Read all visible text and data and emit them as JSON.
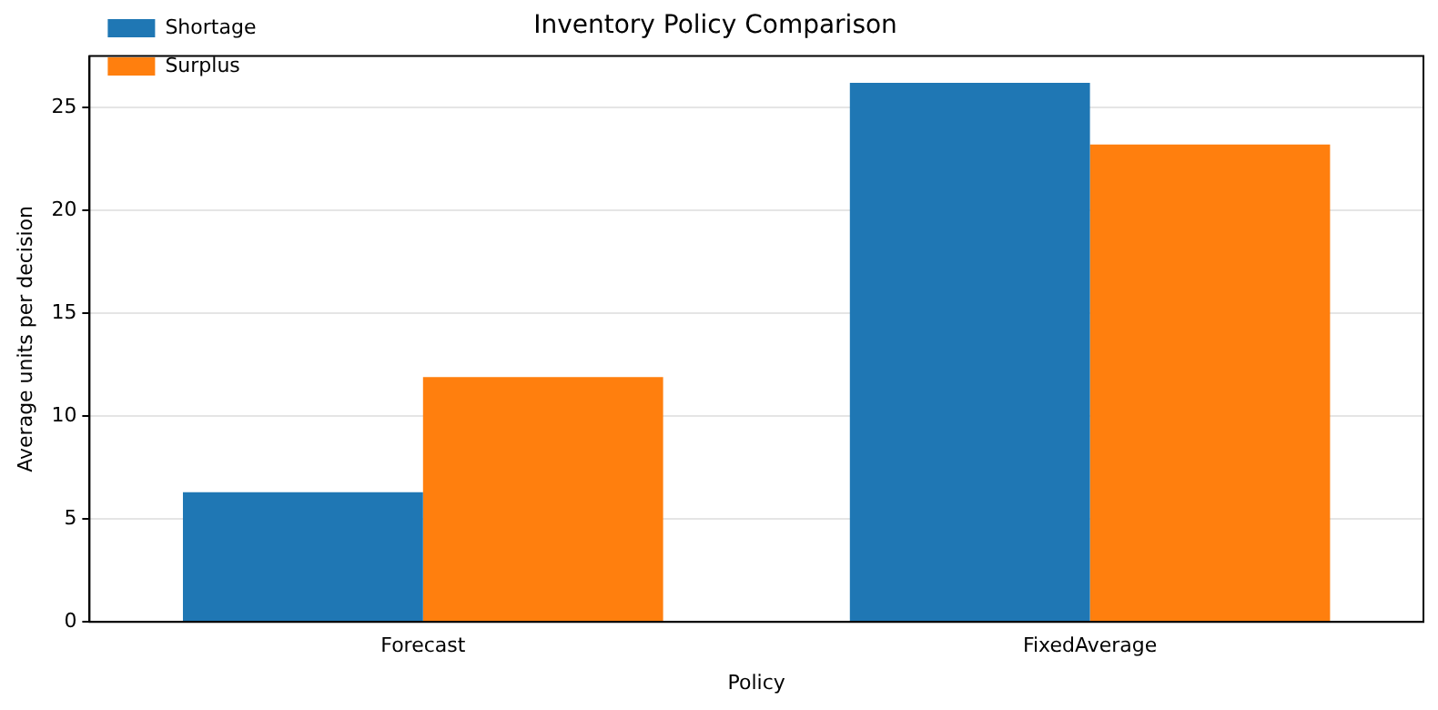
{
  "chart_data": {
    "type": "bar",
    "title": "Inventory Policy Comparison",
    "xlabel": "Policy",
    "ylabel": "Average units per decision",
    "categories": [
      "Forecast",
      "FixedAverage"
    ],
    "series": [
      {
        "name": "Shortage",
        "color": "#1f77b4",
        "values": [
          6.3,
          26.2
        ]
      },
      {
        "name": "Surplus",
        "color": "#ff7f0e",
        "values": [
          11.9,
          23.2
        ]
      }
    ],
    "ylim": [
      0,
      27.5
    ],
    "yticks": [
      0,
      5,
      10,
      15,
      20,
      25
    ],
    "grid": "y",
    "legend": "top left"
  }
}
